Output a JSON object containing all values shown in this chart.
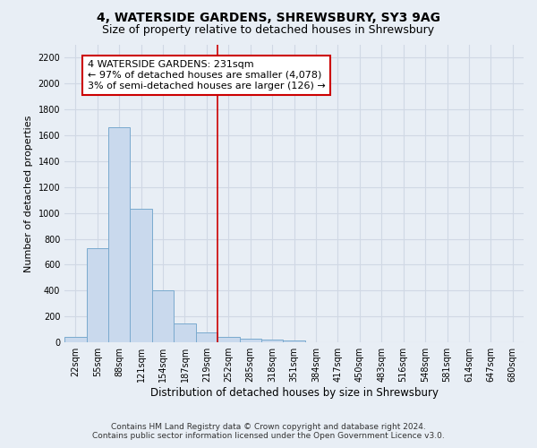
{
  "title1": "4, WATERSIDE GARDENS, SHREWSBURY, SY3 9AG",
  "title2": "Size of property relative to detached houses in Shrewsbury",
  "xlabel": "Distribution of detached houses by size in Shrewsbury",
  "ylabel": "Number of detached properties",
  "bar_labels": [
    "22sqm",
    "55sqm",
    "88sqm",
    "121sqm",
    "154sqm",
    "187sqm",
    "219sqm",
    "252sqm",
    "285sqm",
    "318sqm",
    "351sqm",
    "384sqm",
    "417sqm",
    "450sqm",
    "483sqm",
    "516sqm",
    "548sqm",
    "581sqm",
    "614sqm",
    "647sqm",
    "680sqm"
  ],
  "bar_values": [
    40,
    730,
    1660,
    1030,
    400,
    145,
    80,
    40,
    30,
    22,
    12,
    0,
    0,
    0,
    0,
    0,
    0,
    0,
    0,
    0,
    0
  ],
  "bar_color": "#c9d9ed",
  "bar_edge_color": "#7aaace",
  "grid_color": "#d0d8e4",
  "background_color": "#e8eef5",
  "plot_bg_color": "#e8eef5",
  "vline_x_idx": 6.5,
  "vline_color": "#cc0000",
  "annotation_line1": "4 WATERSIDE GARDENS: 231sqm",
  "annotation_line2": "← 97% of detached houses are smaller (4,078)",
  "annotation_line3": "3% of semi-detached houses are larger (126) →",
  "annotation_box_edge_color": "#cc0000",
  "annotation_box_fill": "#ffffff",
  "ylim": [
    0,
    2300
  ],
  "yticks": [
    0,
    200,
    400,
    600,
    800,
    1000,
    1200,
    1400,
    1600,
    1800,
    2000,
    2200
  ],
  "footer1": "Contains HM Land Registry data © Crown copyright and database right 2024.",
  "footer2": "Contains public sector information licensed under the Open Government Licence v3.0.",
  "title_fontsize": 10,
  "subtitle_fontsize": 9,
  "tick_fontsize": 7,
  "ylabel_fontsize": 8,
  "xlabel_fontsize": 8.5,
  "annotation_fontsize": 8,
  "footer_fontsize": 6.5
}
